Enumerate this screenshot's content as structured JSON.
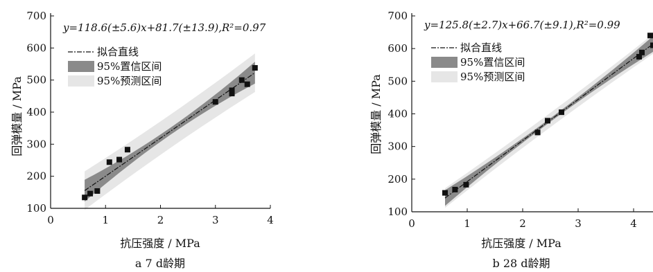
{
  "chart_data": [
    {
      "type": "scatter",
      "panel_caption": "a  7 d龄期",
      "equation": "y=118.6(±5.6)x+81.7(±13.9),R²=0.97",
      "xlabel": "抗压强度 / MPa",
      "ylabel": "回弹模量 / MPa",
      "xlim": [
        0,
        4
      ],
      "ylim": [
        100,
        700
      ],
      "xticks": [
        0,
        1,
        2,
        3,
        4
      ],
      "yticks": [
        100,
        200,
        300,
        400,
        500,
        600,
        700
      ],
      "grid": false,
      "legend_position": "upper-left",
      "legend": [
        "拟合直线",
        "95%置信区间",
        "95%预测区间"
      ],
      "fit": {
        "slope": 118.6,
        "intercept": 81.7,
        "x_range": [
          0.62,
          3.72
        ]
      },
      "points": [
        {
          "x": 0.62,
          "y": 134
        },
        {
          "x": 0.72,
          "y": 146
        },
        {
          "x": 0.85,
          "y": 154
        },
        {
          "x": 1.07,
          "y": 244
        },
        {
          "x": 1.25,
          "y": 252
        },
        {
          "x": 1.4,
          "y": 283
        },
        {
          "x": 3.0,
          "y": 432
        },
        {
          "x": 3.3,
          "y": 458
        },
        {
          "x": 3.3,
          "y": 468
        },
        {
          "x": 3.48,
          "y": 500
        },
        {
          "x": 3.58,
          "y": 487
        },
        {
          "x": 3.72,
          "y": 538
        }
      ]
    },
    {
      "type": "scatter",
      "panel_caption": "b  28 d龄期",
      "equation": "y=125.8(±2.7)x+66.7(±9.1),R²=0.99",
      "xlabel": "抗压强度 / MPa",
      "ylabel": "回弹模量 / MPa",
      "xlim": [
        0,
        4.35
      ],
      "ylim": [
        100,
        700
      ],
      "xticks": [
        0,
        1,
        2,
        3,
        4
      ],
      "yticks": [
        100,
        200,
        300,
        400,
        500,
        600,
        700
      ],
      "grid": false,
      "legend_position": "upper-left",
      "legend": [
        "拟合直线",
        "95%置信区间",
        "95%预测区间"
      ],
      "fit": {
        "slope": 125.8,
        "intercept": 66.7,
        "x_range": [
          0.6,
          4.35
        ]
      },
      "points": [
        {
          "x": 0.6,
          "y": 158
        },
        {
          "x": 0.78,
          "y": 168
        },
        {
          "x": 0.98,
          "y": 183
        },
        {
          "x": 2.27,
          "y": 343
        },
        {
          "x": 2.45,
          "y": 379
        },
        {
          "x": 2.7,
          "y": 405
        },
        {
          "x": 4.1,
          "y": 575
        },
        {
          "x": 4.15,
          "y": 588
        },
        {
          "x": 4.3,
          "y": 640
        },
        {
          "x": 4.35,
          "y": 610
        }
      ]
    }
  ]
}
